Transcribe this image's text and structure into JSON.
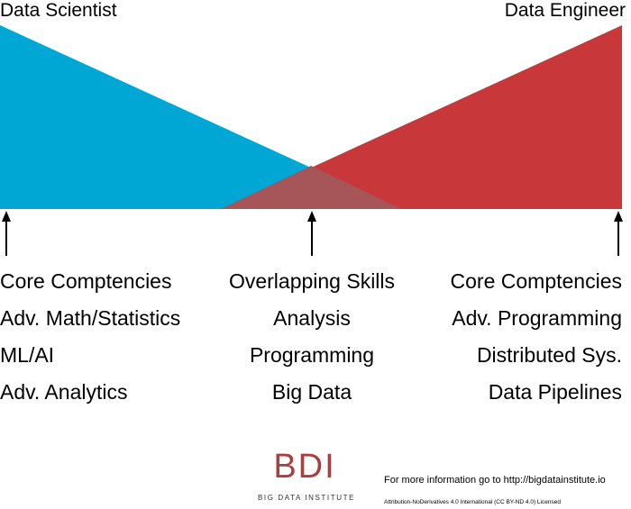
{
  "left_role": {
    "title": "Data Scientist",
    "color": "#00a7d4"
  },
  "right_role": {
    "title": "Data Engineer",
    "color": "#c8383a"
  },
  "overlap_color": "#a65658",
  "columns": {
    "left": {
      "header": "Core Comptencies",
      "items": [
        "Adv. Math/Statistics",
        "ML/AI",
        "Adv. Analytics"
      ]
    },
    "middle": {
      "header": "Overlapping Skills",
      "items": [
        "Analysis",
        "Programming",
        "Big Data"
      ]
    },
    "right": {
      "header": "Core Comptencies",
      "items": [
        "Adv. Programming",
        "Distributed Sys.",
        "Data Pipelines"
      ]
    }
  },
  "footer": {
    "logo_text": "BDI",
    "logo_subtext": "BIG DATA INSTITUTE",
    "info": "For more information go to http://bigdatainstitute.io",
    "license": "Attribution-NoDerivatives 4.0 International (CC BY-ND 4.0) Licensed"
  }
}
